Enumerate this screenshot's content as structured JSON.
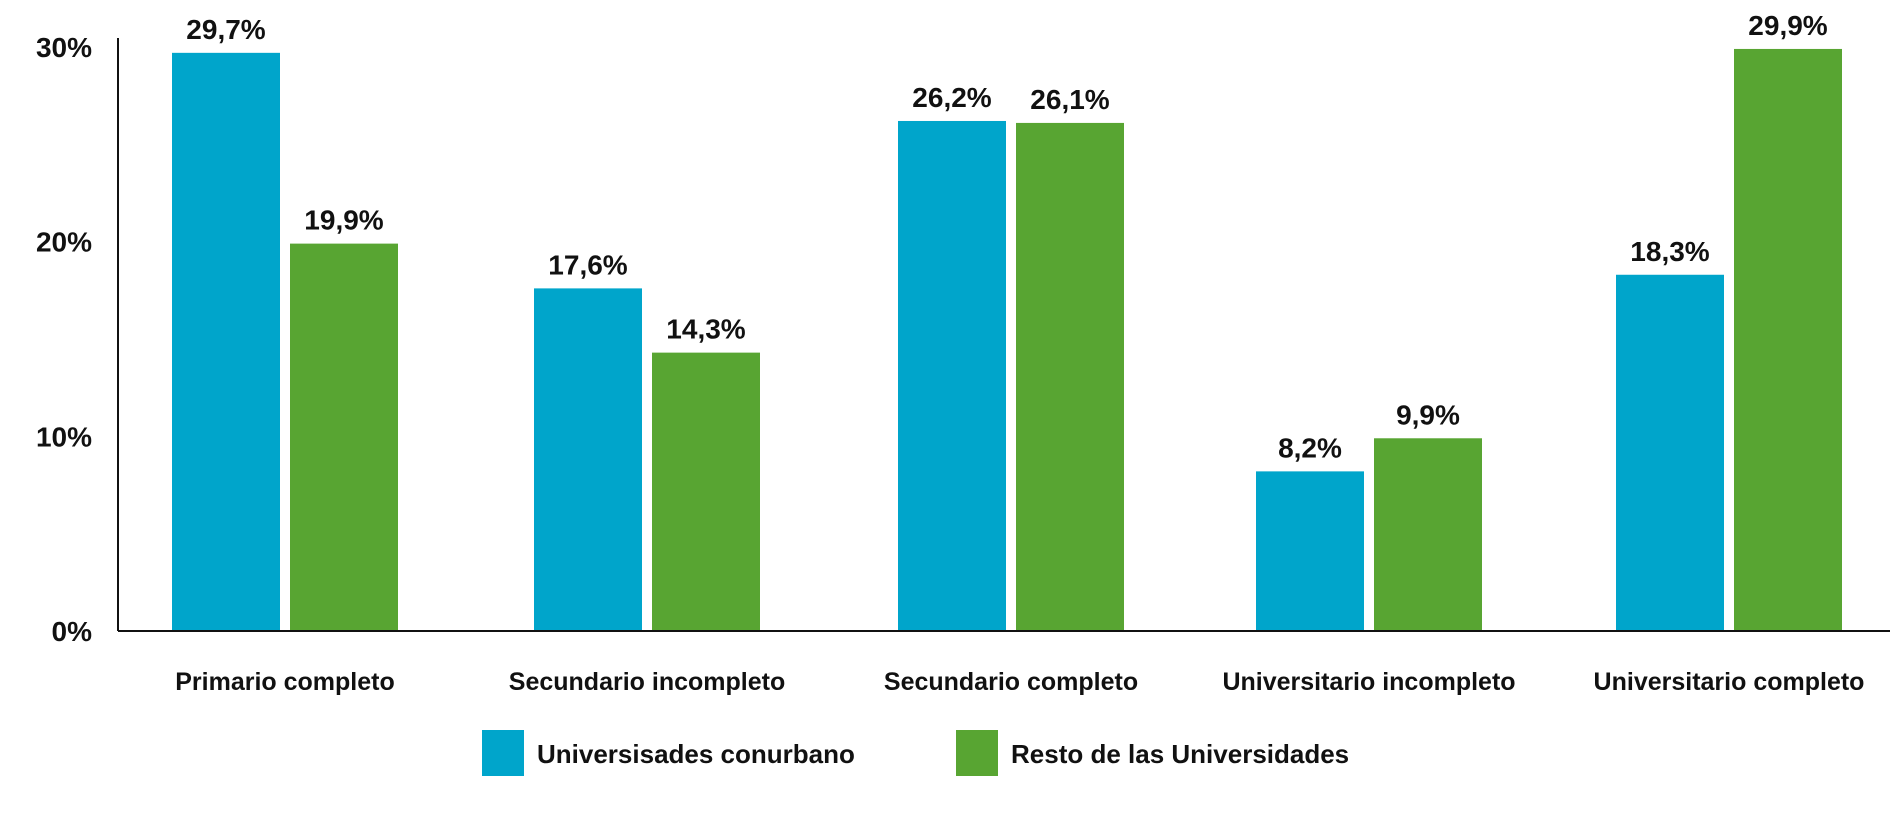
{
  "chart_data": {
    "type": "bar",
    "categories": [
      "Primario completo",
      "Secundario incompleto",
      "Secundario completo",
      "Universitario incompleto",
      "Universitario completo"
    ],
    "series": [
      {
        "name": "Universisades conurbano",
        "color": "#00a5cb",
        "values": [
          29.7,
          17.6,
          26.2,
          8.2,
          18.3
        ],
        "labels": [
          "29,7%",
          "17,6%",
          "26,2%",
          "8,2%",
          "18,3%"
        ]
      },
      {
        "name": "Resto de las Universidades",
        "color": "#58a532",
        "values": [
          19.9,
          14.3,
          26.1,
          9.9,
          29.9
        ],
        "labels": [
          "19,9%",
          "14,3%",
          "26,1%",
          "9,9%",
          "29,9%"
        ]
      }
    ],
    "ylim": [
      0,
      30
    ],
    "yticks": [
      "0%",
      "10%",
      "20%",
      "30%"
    ],
    "ytick_values": [
      0,
      10,
      20,
      30
    ],
    "grid": false,
    "legend": "bottom",
    "xlabel": "",
    "ylabel": "",
    "title": ""
  }
}
